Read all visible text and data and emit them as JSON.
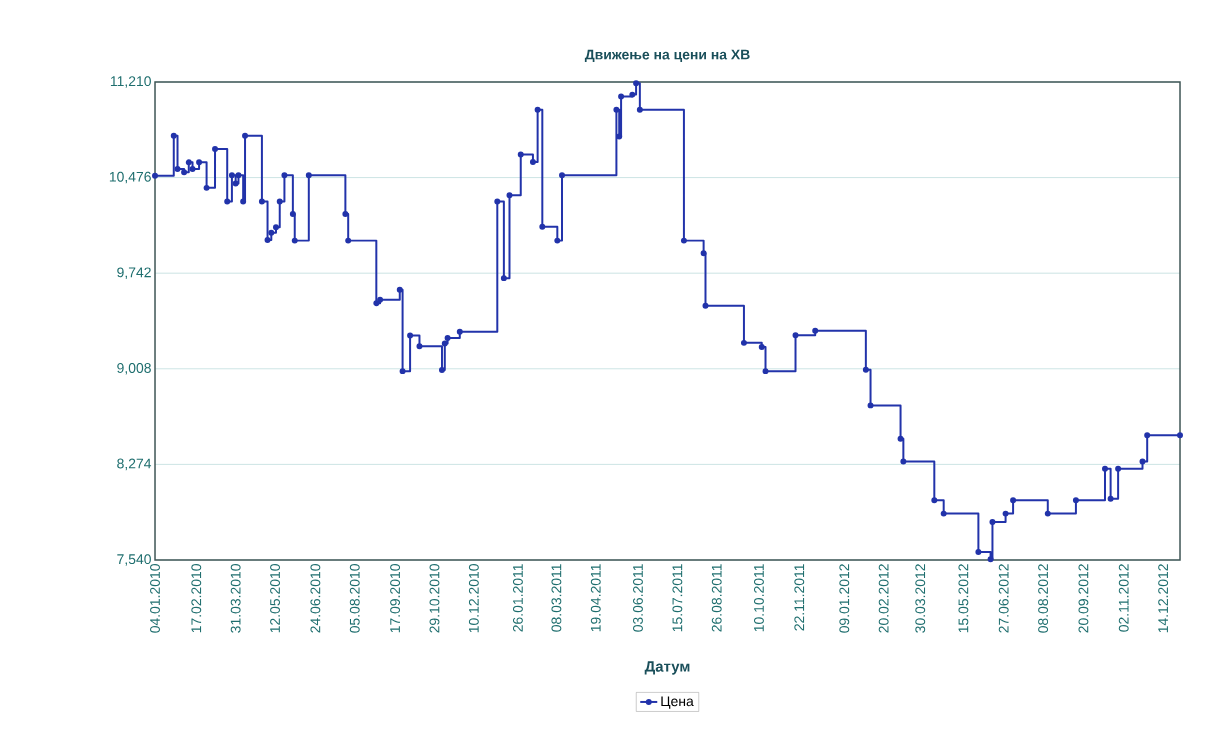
{
  "chart_data": {
    "type": "step",
    "title": "Движење на цени на ХВ",
    "xlabel": "Датум",
    "x": [
      "2010-01-04",
      "2010-01-24",
      "2010-01-28",
      "2010-02-04",
      "2010-02-09",
      "2010-02-13",
      "2010-02-20",
      "2010-02-28",
      "2010-03-09",
      "2010-03-22",
      "2010-03-27",
      "2010-03-31",
      "2010-04-03",
      "2010-04-08",
      "2010-04-10",
      "2010-04-28",
      "2010-05-04",
      "2010-05-08",
      "2010-05-13",
      "2010-05-17",
      "2010-05-22",
      "2010-05-31",
      "2010-06-02",
      "2010-06-17",
      "2010-07-26",
      "2010-07-29",
      "2010-08-28",
      "2010-09-01",
      "2010-09-22",
      "2010-09-25",
      "2010-10-03",
      "2010-10-13",
      "2010-11-06",
      "2010-11-09",
      "2010-11-12",
      "2010-11-25",
      "2011-01-04",
      "2011-01-11",
      "2011-01-17",
      "2011-01-29",
      "2011-02-11",
      "2011-02-16",
      "2011-02-21",
      "2011-03-09",
      "2011-03-14",
      "2011-05-11",
      "2011-05-14",
      "2011-05-16",
      "2011-05-28",
      "2011-06-01",
      "2011-06-05",
      "2011-07-22",
      "2011-08-12",
      "2011-08-14",
      "2011-09-24",
      "2011-10-13",
      "2011-10-17",
      "2011-11-18",
      "2011-12-09",
      "2012-02-01",
      "2012-02-06",
      "2012-03-09",
      "2012-03-12",
      "2012-04-14",
      "2012-04-24",
      "2012-05-31",
      "2012-06-13",
      "2012-06-15",
      "2012-06-29",
      "2012-07-07",
      "2012-08-13",
      "2012-09-12",
      "2012-10-13",
      "2012-10-19",
      "2012-10-27",
      "2012-11-22",
      "2012-11-27",
      "2013-01-01"
    ],
    "series": [
      {
        "name": "Цена",
        "color": "#2233aa",
        "values": [
          10490,
          10797,
          10542,
          10517,
          10593,
          10542,
          10593,
          10397,
          10695,
          10293,
          10494,
          10430,
          10494,
          10293,
          10797,
          10293,
          9997,
          10053,
          10094,
          10293,
          10494,
          10196,
          9992,
          10494,
          10196,
          9992,
          9512,
          9538,
          9614,
          8990,
          9263,
          9181,
          8998,
          9202,
          9245,
          9293,
          10293,
          9704,
          10341,
          10654,
          10596,
          10996,
          10099,
          9992,
          10494,
          10996,
          10792,
          11098,
          11113,
          11200,
          10996,
          9992,
          9895,
          9492,
          9207,
          9176,
          8990,
          9265,
          9300,
          9000,
          8727,
          8471,
          8297,
          7998,
          7896,
          7602,
          7545,
          7832,
          7896,
          7998,
          7896,
          7998,
          8241,
          8011,
          8241,
          8297,
          8497,
          8497
        ]
      }
    ],
    "xlim": [
      "2010-01-04",
      "2013-01-01"
    ],
    "xticks": [
      {
        "value": "2010-01-04",
        "label": "04.01.2010"
      },
      {
        "value": "2010-02-17",
        "label": "17.02.2010"
      },
      {
        "value": "2010-03-31",
        "label": "31.03.2010"
      },
      {
        "value": "2010-05-12",
        "label": "12.05.2010"
      },
      {
        "value": "2010-06-24",
        "label": "24.06.2010"
      },
      {
        "value": "2010-08-05",
        "label": "05.08.2010"
      },
      {
        "value": "2010-09-17",
        "label": "17.09.2010"
      },
      {
        "value": "2010-10-29",
        "label": "29.10.2010"
      },
      {
        "value": "2010-12-10",
        "label": "10.12.2010"
      },
      {
        "value": "2011-01-26",
        "label": "26.01.2011"
      },
      {
        "value": "2011-03-08",
        "label": "08.03.2011"
      },
      {
        "value": "2011-04-19",
        "label": "19.04.2011"
      },
      {
        "value": "2011-06-03",
        "label": "03.06.2011"
      },
      {
        "value": "2011-07-15",
        "label": "15.07.2011"
      },
      {
        "value": "2011-08-26",
        "label": "26.08.2011"
      },
      {
        "value": "2011-10-10",
        "label": "10.10.2011"
      },
      {
        "value": "2011-11-22",
        "label": "22.11.2011"
      },
      {
        "value": "2012-01-09",
        "label": "09.01.2012"
      },
      {
        "value": "2012-02-20",
        "label": "20.02.2012"
      },
      {
        "value": "2012-03-30",
        "label": "30.03.2012"
      },
      {
        "value": "2012-05-15",
        "label": "15.05.2012"
      },
      {
        "value": "2012-06-27",
        "label": "27.06.2012"
      },
      {
        "value": "2012-08-08",
        "label": "08.08.2012"
      },
      {
        "value": "2012-09-20",
        "label": "20.09.2012"
      },
      {
        "value": "2012-11-02",
        "label": "02.11.2012"
      },
      {
        "value": "2012-12-14",
        "label": "14.12.2012"
      }
    ],
    "ylim": [
      7540,
      11210
    ],
    "yticks": [
      {
        "value": 7540,
        "label": "7,540"
      },
      {
        "value": 8274,
        "label": "8,274"
      },
      {
        "value": 9008,
        "label": "9,008"
      },
      {
        "value": 9742,
        "label": "9,742"
      },
      {
        "value": 10476,
        "label": "10,476"
      },
      {
        "value": 11210,
        "label": "11,210"
      }
    ],
    "grid": "y",
    "legend": "bottom",
    "marker": "circle",
    "line_style": "solid"
  }
}
